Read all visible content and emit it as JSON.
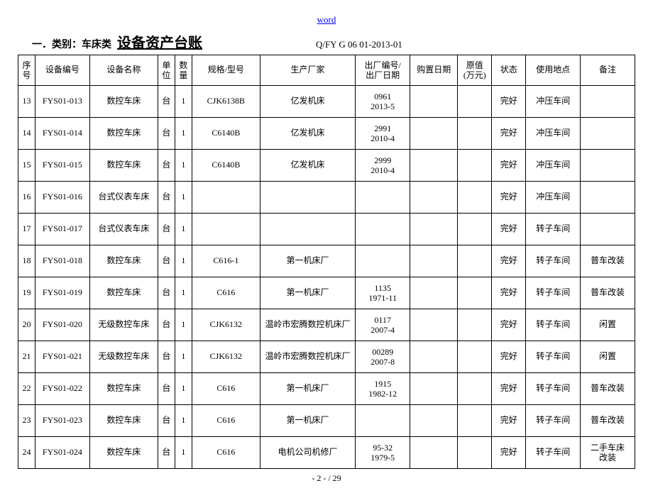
{
  "header": {
    "word_link": "word",
    "category_prefix": "一．类别：车床类",
    "title": "设备资产台账",
    "doc_code": "Q/FY G 06 01-2013-01"
  },
  "columns": [
    "序号",
    "设备编号",
    "设备名称",
    "单位",
    "数量",
    "规格/型号",
    "生产厂家",
    "出厂编号/\n出厂日期",
    "购置日期",
    "原值\n(万元)",
    "状态",
    "使用地点",
    "备注"
  ],
  "rows": [
    {
      "seq": "13",
      "code": "FYS01-013",
      "name": "数控车床",
      "unit": "台",
      "qty": "1",
      "spec": "CJK6138B",
      "mfr": "亿发机床",
      "serial": "0961\n2013-5",
      "pdate": "",
      "value": "",
      "status": "完好",
      "loc": "冲压车间",
      "remark": ""
    },
    {
      "seq": "14",
      "code": "FYS01-014",
      "name": "数控车床",
      "unit": "台",
      "qty": "1",
      "spec": "C6140B",
      "mfr": "亿发机床",
      "serial": "2991\n2010-4",
      "pdate": "",
      "value": "",
      "status": "完好",
      "loc": "冲压车间",
      "remark": ""
    },
    {
      "seq": "15",
      "code": "FYS01-015",
      "name": "数控车床",
      "unit": "台",
      "qty": "1",
      "spec": "C6140B",
      "mfr": "亿发机床",
      "serial": "2999\n2010-4",
      "pdate": "",
      "value": "",
      "status": "完好",
      "loc": "冲压车间",
      "remark": ""
    },
    {
      "seq": "16",
      "code": "FYS01-016",
      "name": "台式仪表车床",
      "unit": "台",
      "qty": "1",
      "spec": "",
      "mfr": "",
      "serial": "",
      "pdate": "",
      "value": "",
      "status": "完好",
      "loc": "冲压车间",
      "remark": ""
    },
    {
      "seq": "17",
      "code": "FYS01-017",
      "name": "台式仪表车床",
      "unit": "台",
      "qty": "1",
      "spec": "",
      "mfr": "",
      "serial": "",
      "pdate": "",
      "value": "",
      "status": "完好",
      "loc": "转子车间",
      "remark": ""
    },
    {
      "seq": "18",
      "code": "FYS01-018",
      "name": "数控车床",
      "unit": "台",
      "qty": "1",
      "spec": "C616-1",
      "mfr": "第一机床厂",
      "serial": "",
      "pdate": "",
      "value": "",
      "status": "完好",
      "loc": "转子车间",
      "remark": "普车改装"
    },
    {
      "seq": "19",
      "code": "FYS01-019",
      "name": "数控车床",
      "unit": "台",
      "qty": "1",
      "spec": "C616",
      "mfr": "第一机床厂",
      "serial": "1135\n1971-11",
      "pdate": "",
      "value": "",
      "status": "完好",
      "loc": "转子车间",
      "remark": "普车改装"
    },
    {
      "seq": "20",
      "code": "FYS01-020",
      "name": "无级数控车床",
      "unit": "台",
      "qty": "1",
      "spec": "CJK6132",
      "mfr": "温岭市宏腾数控机床厂",
      "serial": "0117\n2007-4",
      "pdate": "",
      "value": "",
      "status": "完好",
      "loc": "转子车间",
      "remark": "闲置"
    },
    {
      "seq": "21",
      "code": "FYS01-021",
      "name": "无级数控车床",
      "unit": "台",
      "qty": "1",
      "spec": "CJK6132",
      "mfr": "温岭市宏腾数控机床厂",
      "serial": "00289\n2007-8",
      "pdate": "",
      "value": "",
      "status": "完好",
      "loc": "转子车间",
      "remark": "闲置"
    },
    {
      "seq": "22",
      "code": "FYS01-022",
      "name": "数控车床",
      "unit": "台",
      "qty": "1",
      "spec": "C616",
      "mfr": "第一机床厂",
      "serial": "1915\n1982-12",
      "pdate": "",
      "value": "",
      "status": "完好",
      "loc": "转子车间",
      "remark": "普车改装"
    },
    {
      "seq": "23",
      "code": "FYS01-023",
      "name": "数控车床",
      "unit": "台",
      "qty": "1",
      "spec": "C616",
      "mfr": "第一机床厂",
      "serial": "",
      "pdate": "",
      "value": "",
      "status": "完好",
      "loc": "转子车间",
      "remark": "普车改装"
    },
    {
      "seq": "24",
      "code": "FYS01-024",
      "name": "数控车床",
      "unit": "台",
      "qty": "1",
      "spec": "C616",
      "mfr": "电机公司机修厂",
      "serial": "95-32\n1979-5",
      "pdate": "",
      "value": "",
      "status": "完好",
      "loc": "转子车间",
      "remark": "二手车床\n改装"
    }
  ],
  "footer": "- 2 -  / 29"
}
